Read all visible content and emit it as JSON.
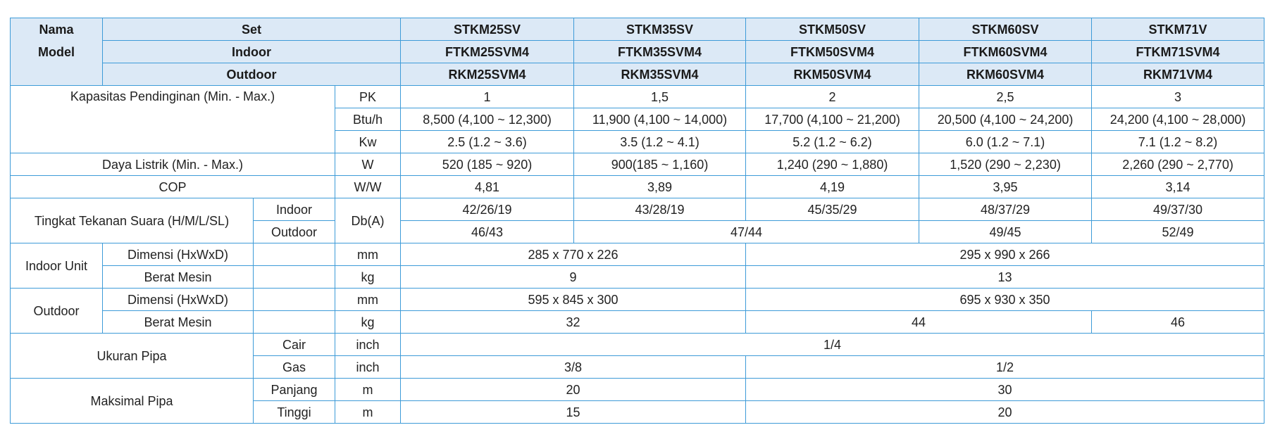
{
  "table": {
    "header": {
      "nama": "Nama",
      "model": "Model",
      "rows": [
        [
          "Set",
          "STKM25SV",
          "STKM35SV",
          "STKM50SV",
          "STKM60SV",
          "STKM71V"
        ],
        [
          "Indoor",
          "FTKM25SVM4",
          "FTKM35SVM4",
          "FTKM50SVM4",
          "FTKM60SVM4",
          "FTKM71SVM4"
        ],
        [
          "Outdoor",
          "RKM25SVM4",
          "RKM35SVM4",
          "RKM50SVM4",
          "RKM60SVM4",
          "RKM71VM4"
        ]
      ]
    },
    "rows": [
      [
        "Kapasitas Pendinginan (Min. - Max.)",
        "PK",
        "1",
        "1,5",
        "2",
        "2,5",
        "3"
      ],
      [
        "Btu/h",
        "8,500 (4,100 ~ 12,300)",
        "11,900 (4,100 ~ 14,000)",
        "17,700 (4,100 ~ 21,200)",
        "20,500 (4,100 ~ 24,200)",
        "24,200 (4,100 ~ 28,000)"
      ],
      [
        "Kw",
        "2.5 (1.2 ~ 3.6)",
        "3.5 (1.2 ~ 4.1)",
        "5.2 (1.2 ~ 6.2)",
        "6.0 (1.2 ~ 7.1)",
        "7.1 (1.2 ~ 8.2)"
      ],
      [
        "Daya Listrik (Min. - Max.)",
        "W",
        "520 (185 ~ 920)",
        "900(185 ~ 1,160)",
        "1,240 (290 ~ 1,880)",
        "1,520 (290 ~ 2,230)",
        "2,260 (290 ~ 2,770)"
      ],
      [
        "COP",
        "W/W",
        "4,81",
        "3,89",
        "4,19",
        "3,95",
        "3,14"
      ],
      [
        "Tingkat Tekanan Suara (H/M/L/SL)",
        "Indoor",
        "Db(A)",
        "42/26/19",
        "43/28/19",
        "45/35/29",
        "48/37/29",
        "49/37/30"
      ],
      [
        "Outdoor",
        "46/43",
        "47/44",
        "49/45",
        "52/49"
      ],
      [
        "Indoor Unit",
        "Dimensi (HxWxD)",
        "mm",
        "285 x 770 x 226",
        "295 x 990 x 266"
      ],
      [
        "Berat Mesin",
        "kg",
        "9",
        "13"
      ],
      [
        "Outdoor",
        "Dimensi (HxWxD)",
        "mm",
        "595 x 845 x 300",
        "695 x 930 x 350"
      ],
      [
        "Berat Mesin",
        "kg",
        "32",
        "44",
        "46"
      ],
      [
        "Ukuran Pipa",
        "Cair",
        "inch",
        "1/4"
      ],
      [
        "Gas",
        "inch",
        "3/8",
        "1/2"
      ],
      [
        "Maksimal Pipa",
        "Panjang",
        "m",
        "20",
        "30"
      ],
      [
        "Tinggi",
        "m",
        "15",
        "20"
      ]
    ]
  }
}
